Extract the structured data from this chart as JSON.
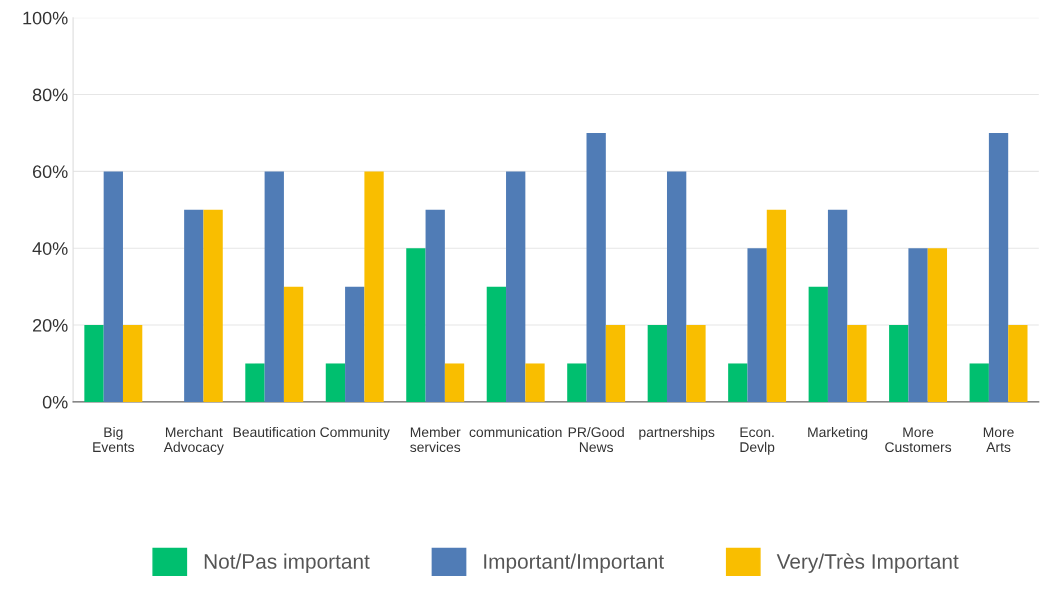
{
  "chart_data": {
    "type": "bar",
    "categories": [
      "Big Events",
      "Merchant Advocacy",
      "Beautification",
      "Community",
      "Member services",
      "communication",
      "PR/Good News",
      "partnerships",
      "Econ. Devlp",
      "Marketing",
      "More Customers",
      "More Arts"
    ],
    "series": [
      {
        "name": "Not/Pas important",
        "color": "#00bf6f",
        "values": [
          20,
          0,
          10,
          10,
          40,
          30,
          10,
          20,
          10,
          30,
          20,
          10
        ]
      },
      {
        "name": "Important/Important",
        "color": "#507cb6",
        "values": [
          60,
          50,
          60,
          30,
          50,
          60,
          70,
          60,
          40,
          50,
          40,
          70
        ]
      },
      {
        "name": "Very/Très Important",
        "color": "#f9be00",
        "values": [
          20,
          50,
          30,
          60,
          10,
          10,
          20,
          20,
          50,
          20,
          40,
          20
        ]
      }
    ],
    "ylim": [
      0,
      100
    ],
    "yticks": [
      {
        "value": 0,
        "label": "0%"
      },
      {
        "value": 20,
        "label": "20%"
      },
      {
        "value": 40,
        "label": "40%"
      },
      {
        "value": 60,
        "label": "60%"
      },
      {
        "value": 80,
        "label": "80%"
      },
      {
        "value": 100,
        "label": "100%"
      }
    ],
    "grid": "y",
    "legend": "bottom"
  }
}
